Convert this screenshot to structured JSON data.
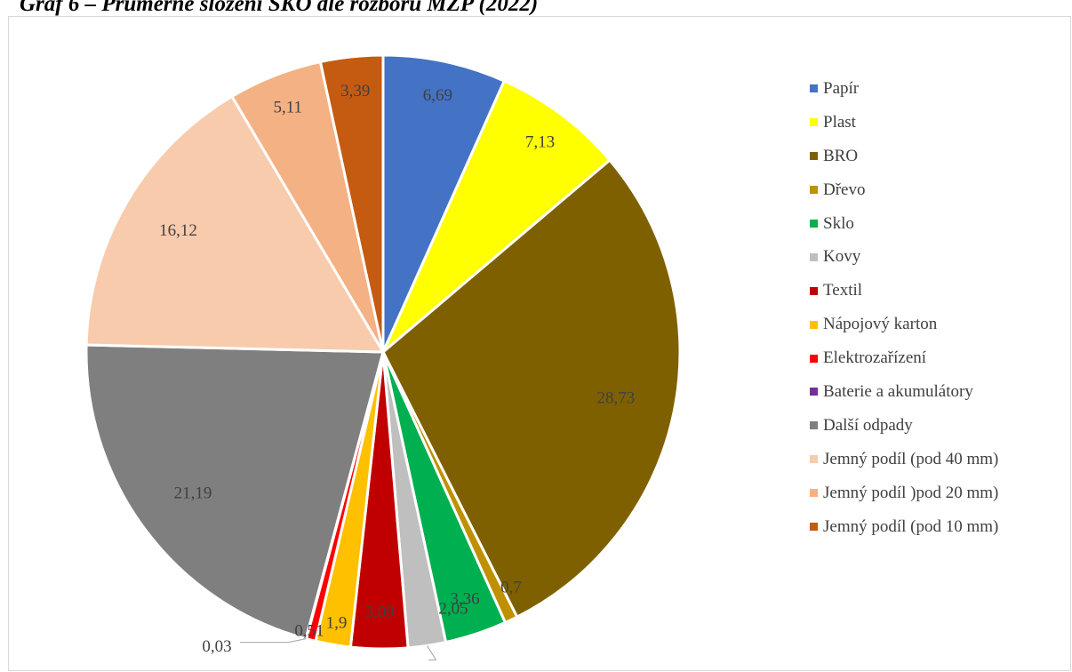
{
  "title": "Graf 6 – Průměrné složení SKO dle rozboru MŽP (2022)",
  "chart_data": {
    "type": "pie",
    "title": "Graf 6 – Průměrné složení SKO dle rozboru MŽP (2022)",
    "legend_position": "right",
    "slices": [
      {
        "name": "Papír",
        "value": 6.69,
        "label": "6,69",
        "color": "#4472c4"
      },
      {
        "name": "Plast",
        "value": 7.13,
        "label": "7,13",
        "color": "#ffff00"
      },
      {
        "name": "BRO",
        "value": 28.73,
        "label": "28,73",
        "color": "#7f6000"
      },
      {
        "name": "Dřevo",
        "value": 0.7,
        "label": "0,7",
        "color": "#bf9000"
      },
      {
        "name": "Sklo",
        "value": 3.36,
        "label": "3,36",
        "color": "#00b050"
      },
      {
        "name": "Kovy",
        "value": 2.05,
        "label": "2,05",
        "color": "#bfbfbf"
      },
      {
        "name": "Textil",
        "value": 3.09,
        "label": "3,09",
        "color": "#c00000"
      },
      {
        "name": "Nápojový karton",
        "value": 1.9,
        "label": "1,9",
        "color": "#ffc000"
      },
      {
        "name": "Elektrozařízení",
        "value": 0.51,
        "label": "0,51",
        "color": "#ff0000"
      },
      {
        "name": "Baterie a akumulátory",
        "value": 0.03,
        "label": "0,03",
        "color": "#7030a0"
      },
      {
        "name": "Další odpady",
        "value": 21.19,
        "label": "21,19",
        "color": "#7f7f7f"
      },
      {
        "name": "Jemný podíl (pod 40 mm)",
        "value": 16.12,
        "label": "16,12",
        "color": "#f8cbad"
      },
      {
        "name": "Jemný podíl )pod 20 mm)",
        "value": 5.11,
        "label": "5,11",
        "color": "#f4b183"
      },
      {
        "name": "Jemný podíl (pod 10 mm)",
        "value": 3.39,
        "label": "3,39",
        "color": "#c55a11"
      }
    ]
  }
}
